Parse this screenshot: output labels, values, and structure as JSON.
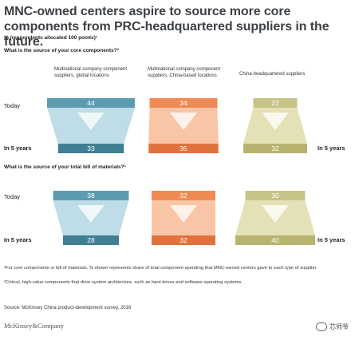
{
  "title": "MNC-owned centers aspire to source more core components from PRC-headquartered suppliers in the future.",
  "subtitle": "% (respondents allocated 100 points)¹",
  "row_labels": {
    "today": "Today",
    "future": "In 5 years"
  },
  "categories": [
    "Multinational company component suppliers, global locations",
    "Multinational company component suppliers, China-based locations",
    "China-headquartered suppliers"
  ],
  "colors": {
    "col1_dark": "#3f7f94",
    "col1_light": "#bedde6",
    "col1_today": "#5d9cb0",
    "col2_dark": "#e0723d",
    "col2_light": "#f8c6a6",
    "col2_today": "#ef8a55",
    "col3_dark": "#b8b36e",
    "col3_light": "#e4e1b6",
    "col3_today": "#c8c488"
  },
  "chart_data": [
    {
      "type": "bar",
      "title": "What is the source of your core components?²",
      "categories": [
        "Multinational company component suppliers, global locations",
        "Multinational company component suppliers, China-based locations",
        "China-headquartered suppliers"
      ],
      "series": [
        {
          "name": "Today",
          "values": [
            44,
            34,
            22
          ]
        },
        {
          "name": "In 5 years",
          "values": [
            33,
            35,
            32
          ]
        }
      ]
    },
    {
      "type": "bar",
      "title": "What is the source of your total bill of materials?¹",
      "categories": [
        "Multinational company component suppliers, global locations",
        "Multinational company component suppliers, China-based locations",
        "China-headquartered suppliers"
      ],
      "series": [
        {
          "name": "Today",
          "values": [
            38,
            32,
            30
          ]
        },
        {
          "name": "In 5 years",
          "values": [
            28,
            32,
            40
          ]
        }
      ]
    }
  ],
  "footnotes": [
    "¹For core components or bill of materials, % shown represents share of total component spending that MNC-owned centers gave to each type of supplier.",
    "²Critical, high-value components that drive system architecture, such as hard drives and software-operating systems."
  ],
  "source": "Source: McKinsey China product-development survey, 2016",
  "logo": "McKinsey&Company",
  "watermark": "芯师爷"
}
